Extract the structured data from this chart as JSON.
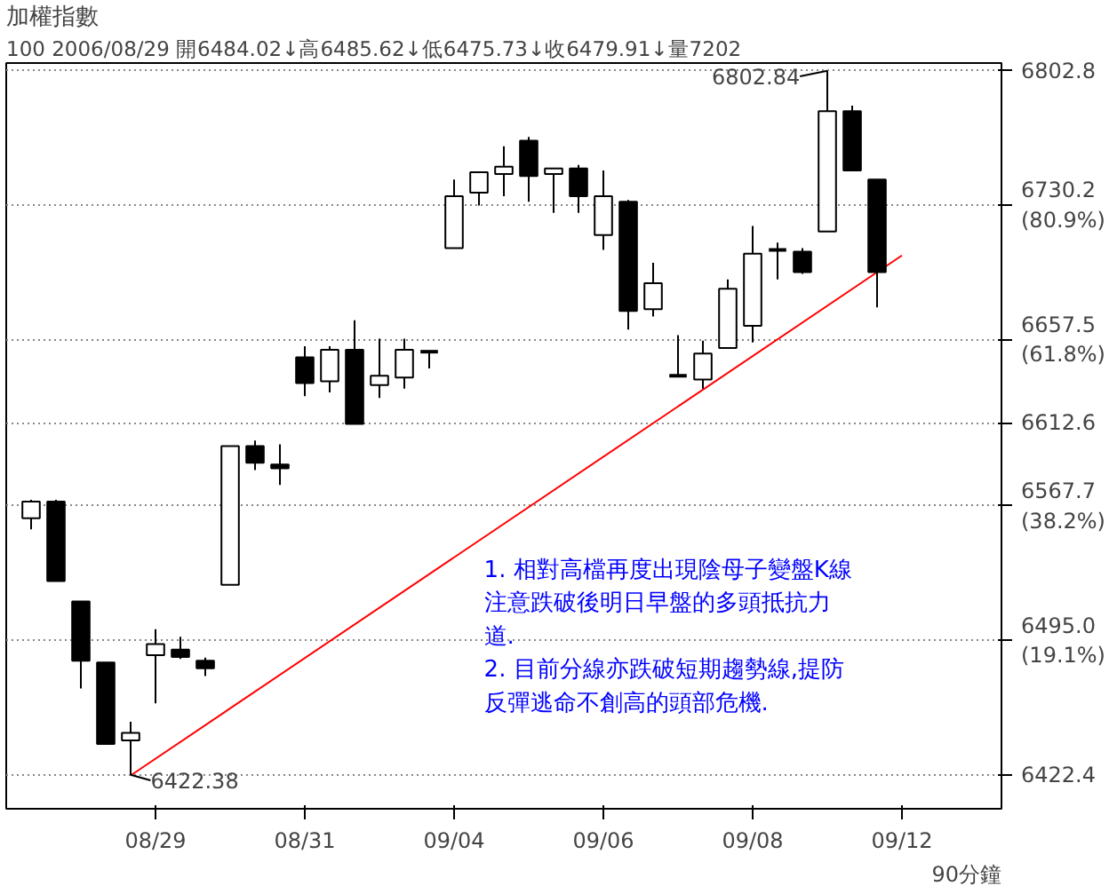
{
  "chart_data": {
    "type": "candlestick",
    "title": "加權指數",
    "subtitle": "100 2006/08/29 開6484.02↓高6485.62↓低6475.73↓收6479.91↓量7202",
    "categories": [
      null,
      null,
      null,
      null,
      null,
      "08/29",
      null,
      null,
      null,
      null,
      null,
      "08/31",
      null,
      null,
      null,
      null,
      null,
      "09/04",
      null,
      null,
      null,
      null,
      null,
      "09/06",
      null,
      null,
      null,
      null,
      null,
      "09/08",
      null,
      null,
      null,
      null,
      null,
      "09/12"
    ],
    "ohlc": [
      [
        6561,
        6571,
        6555,
        6570
      ],
      [
        6570,
        6571,
        6527,
        6527
      ],
      [
        6516,
        6516,
        6469,
        6484
      ],
      [
        6483,
        6483,
        6439,
        6439
      ],
      [
        6441,
        6451,
        6422.38,
        6445
      ],
      [
        6487,
        6501,
        6461,
        6493
      ],
      [
        6490,
        6497,
        6485,
        6486
      ],
      [
        6484.02,
        6485.62,
        6475.73,
        6479.91
      ],
      [
        6525,
        6600,
        6525,
        6600
      ],
      [
        6600,
        6603,
        6587,
        6591
      ],
      [
        6590,
        6601,
        6579,
        6588
      ],
      [
        6648,
        6654,
        6627,
        6634
      ],
      [
        6635,
        6654,
        6629,
        6652
      ],
      [
        6652,
        6668,
        6612,
        6612
      ],
      [
        6633,
        6658,
        6626,
        6638
      ],
      [
        6637,
        6658,
        6631,
        6652
      ],
      [
        6651,
        6651,
        6642,
        6651
      ],
      [
        6707,
        6744,
        6707,
        6735
      ],
      [
        6737,
        6748,
        6730,
        6748
      ],
      [
        6747,
        6762,
        6735,
        6751
      ],
      [
        6765,
        6767,
        6732,
        6746
      ],
      [
        6747,
        6750,
        6726,
        6750
      ],
      [
        6750,
        6752,
        6726,
        6735
      ],
      [
        6714,
        6749,
        6706,
        6735
      ],
      [
        6732,
        6733,
        6663,
        6673
      ],
      [
        6674,
        6699,
        6670,
        6688
      ],
      [
        6638,
        6660,
        6638,
        6638
      ],
      [
        6636,
        6657,
        6631,
        6650
      ],
      [
        6653,
        6690,
        6653,
        6685
      ],
      [
        6665,
        6719,
        6656,
        6704
      ],
      [
        6706,
        6710,
        6690,
        6706
      ],
      [
        6705,
        6707,
        6693,
        6694
      ],
      [
        6716,
        6802.84,
        6716,
        6781
      ],
      [
        6781,
        6784,
        6749,
        6749
      ],
      [
        6744,
        6744,
        6675,
        6694
      ],
      null
    ],
    "colors": [
      "#ffffff",
      "#000000",
      "#000000",
      "#000000",
      "#ffffff",
      "#ffffff",
      "#000000",
      "#000000",
      "#ffffff",
      "#000000",
      "#000000",
      "#000000",
      "#ffffff",
      "#000000",
      "#ffffff",
      "#ffffff",
      "#000000",
      "#ffffff",
      "#ffffff",
      "#ffffff",
      "#000000",
      "#ffffff",
      "#000000",
      "#ffffff",
      "#000000",
      "#ffffff",
      "#000000",
      "#ffffff",
      "#ffffff",
      "#ffffff",
      "#000000",
      "#000000",
      "#ffffff",
      "#000000",
      "#000000",
      null
    ],
    "series": [
      {
        "type": "line",
        "values": [
          null,
          null,
          null,
          null,
          6422,
          null,
          null,
          null,
          null,
          null,
          null,
          null,
          null,
          null,
          null,
          null,
          null,
          null,
          null,
          null,
          null,
          null,
          null,
          null,
          null,
          null,
          null,
          null,
          null,
          null,
          null,
          null,
          null,
          null,
          null,
          6703
        ],
        "color": "#ff0000"
      }
    ],
    "ylim": [
      6404,
      6807
    ],
    "yticks": [
      {
        "value": 6422.4,
        "label": "6422.4"
      },
      {
        "value": 6495.0,
        "label": "6495.0\n(19.1%)"
      },
      {
        "value": 6567.7,
        "label": "6567.7\n(38.2%)"
      },
      {
        "value": 6612.6,
        "label": "6612.6"
      },
      {
        "value": 6657.5,
        "label": "6657.5\n(61.8%)"
      },
      {
        "value": 6730.2,
        "label": "6730.2\n(80.9%)"
      },
      {
        "value": 6802.8,
        "label": "6802.8"
      }
    ],
    "grid": "y",
    "annotations": [
      "6802.84",
      "6422.38",
      "1. 相對高檔再度出現陰母子變盤K線注意跌破後明日早盤的多頭抵抗力道.",
      "2. 目前分線亦跌破短期趨勢線,提防反彈逃命不創高的頭部危機.",
      "90分鐘"
    ]
  }
}
